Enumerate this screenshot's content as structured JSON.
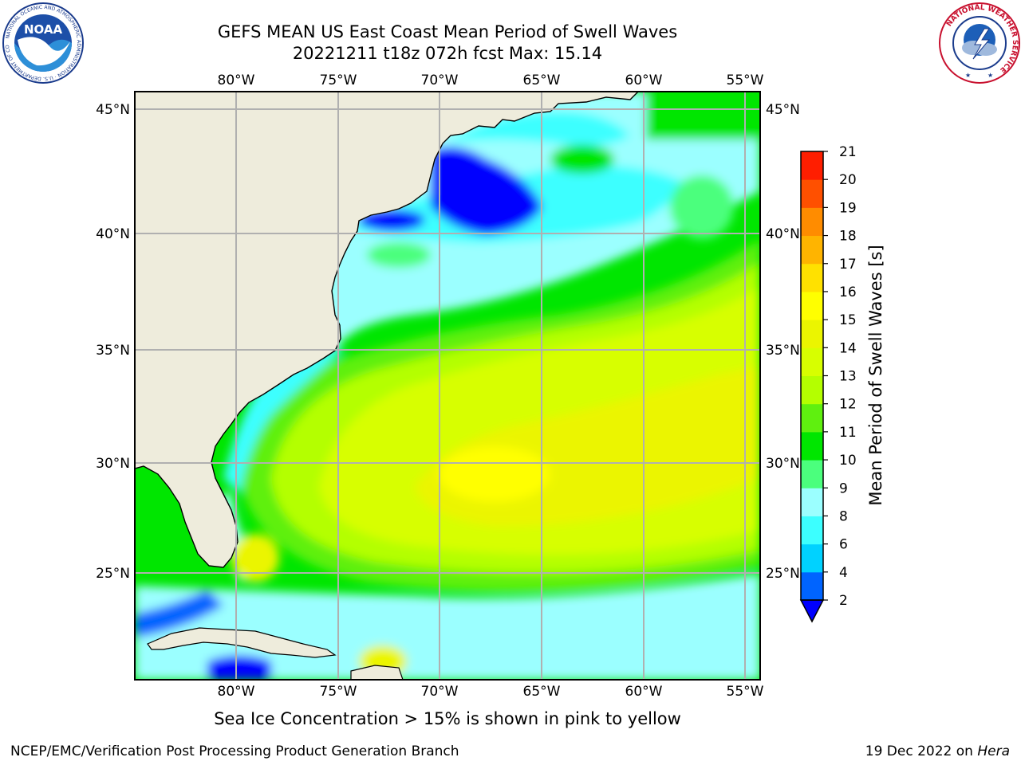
{
  "title": {
    "line1": "GEFS MEAN US East Coast Mean Period of Swell Waves",
    "line2": "20221211 t18z 072h fcst   Max: 15.14"
  },
  "map": {
    "lon_labels": [
      "80°W",
      "75°W",
      "70°W",
      "65°W",
      "60°W",
      "55°W"
    ],
    "lat_labels": [
      "45°N",
      "40°N",
      "35°N",
      "30°N",
      "25°N"
    ],
    "land_color": "#eeecdc",
    "grid_color": "#b0b0b0",
    "coast_color": "#000000"
  },
  "colorbar": {
    "title": "Mean Period of Swell Waves [s]",
    "ticks": [
      "2",
      "4",
      "6",
      "8",
      "9",
      "10",
      "11",
      "12",
      "13",
      "14",
      "15",
      "16",
      "17",
      "18",
      "19",
      "20",
      "21"
    ],
    "colors": [
      "#0064ff",
      "#00d2ff",
      "#3cffff",
      "#9bffff",
      "#4bff7d",
      "#00e600",
      "#5ff00f",
      "#b4ff00",
      "#d7ff00",
      "#ebf500",
      "#ffff00",
      "#ffe100",
      "#ffb400",
      "#ff8c00",
      "#ff5000",
      "#ff1e00"
    ],
    "under_color": "#0000ff"
  },
  "logos": {
    "noaa": "NOAA",
    "noaa_ring_text": "NATIONAL OCEANIC AND ATMOSPHERIC ADMINISTRATION · U.S. DEPARTMENT OF COMMERCE",
    "nws_ring_text": "NATIONAL WEATHER SERVICE"
  },
  "note": "Sea Ice Concentration > 15% is shown in pink to yellow",
  "footer": {
    "left": "NCEP/EMC/Verification Post Processing Product Generation Branch",
    "right_date": "19 Dec 2022 on ",
    "right_host": "Hera"
  }
}
